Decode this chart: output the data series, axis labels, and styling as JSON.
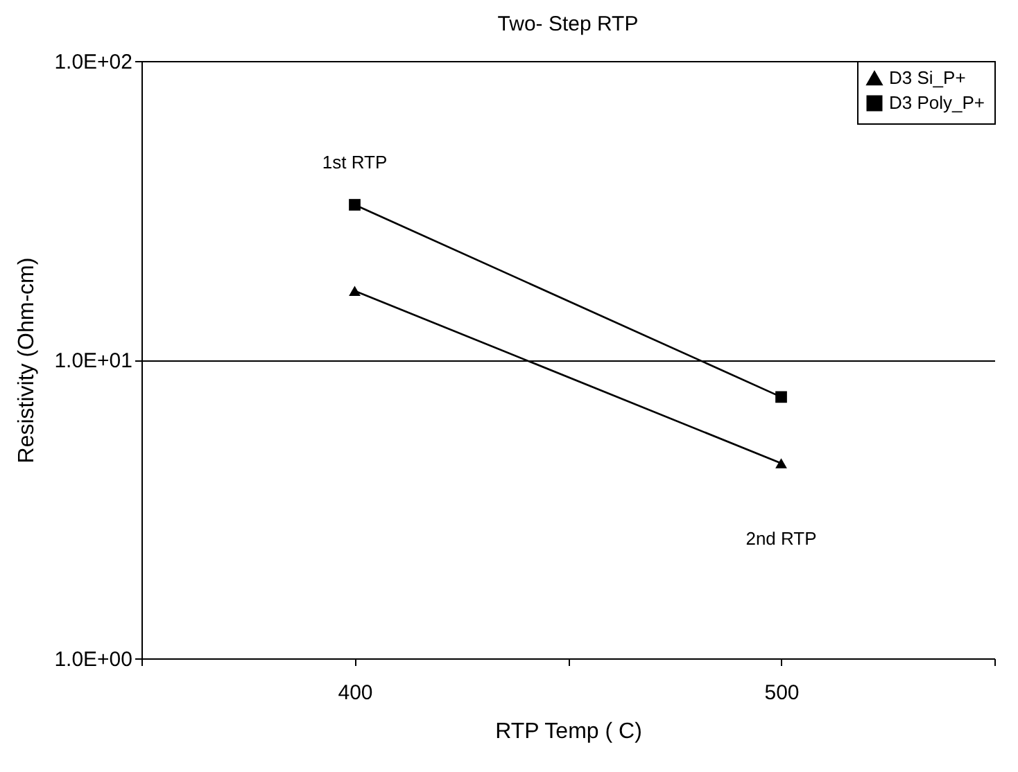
{
  "chart_data": {
    "type": "line",
    "title": "Two- Step RTP",
    "xlabel": "RTP Temp ( C)",
    "ylabel": "Resistivity (Ohm-cm)",
    "x": [
      400,
      500
    ],
    "series": [
      {
        "name": "D3 Si_P+",
        "color": "#000000",
        "marker": "triangle",
        "values": [
          17,
          4.5
        ]
      },
      {
        "name": "D3 Poly_P+",
        "color": "#000000",
        "marker": "square",
        "values": [
          33,
          7.5
        ]
      }
    ],
    "xlim": [
      350,
      550
    ],
    "xticks": [
      {
        "value": 350,
        "label": null
      },
      400,
      {
        "value": 450,
        "label": null
      },
      500,
      {
        "value": 550,
        "label": null
      }
    ],
    "ylim": [
      1,
      100
    ],
    "yticks": [
      {
        "value": 1,
        "label": "1.0E+00"
      },
      {
        "value": 10,
        "label": "1.0E+01"
      },
      {
        "value": 100,
        "label": "1.0E+02"
      }
    ],
    "log": "y",
    "grid": "y",
    "legend": "top right",
    "annotations": [
      "1st RTP",
      "2nd RTP"
    ]
  }
}
